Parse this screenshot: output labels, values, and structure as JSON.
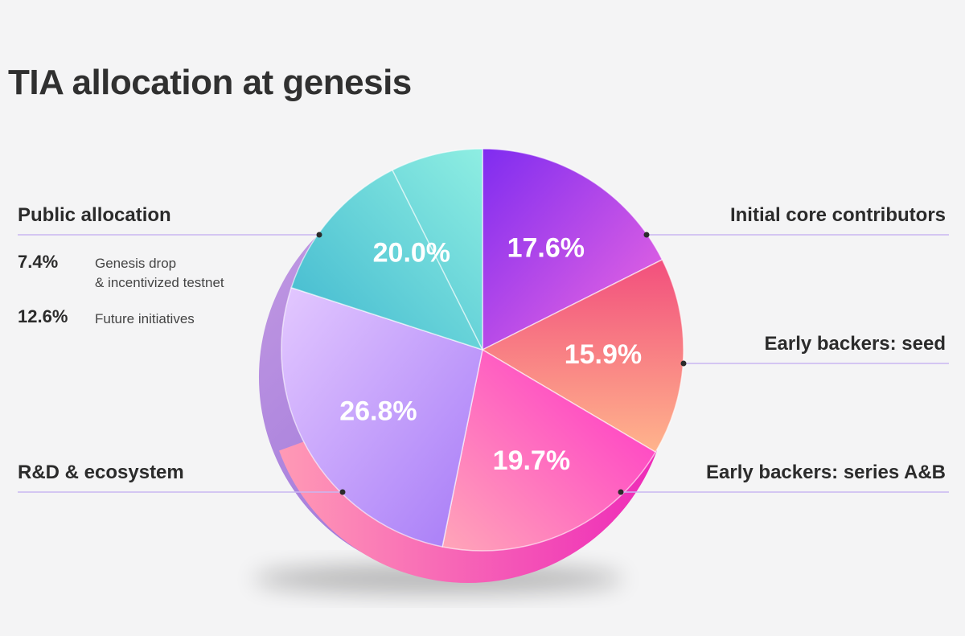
{
  "title": "TIA allocation at genesis",
  "chart_data": {
    "type": "pie",
    "title": "TIA allocation at genesis",
    "slices": [
      {
        "label": "Initial core contributors",
        "value": 17.6,
        "value_label": "17.6%",
        "colors": [
          "#7f2cf0",
          "#f06ae0"
        ]
      },
      {
        "label": "Early backers: seed",
        "value": 15.9,
        "value_label": "15.9%",
        "colors": [
          "#f24f7d",
          "#ffb48c"
        ]
      },
      {
        "label": "Early backers: series A&B",
        "value": 19.7,
        "value_label": "19.7%",
        "colors": [
          "#ff2ec8",
          "#ffa6b8"
        ]
      },
      {
        "label": "R&D & ecosystem",
        "value": 26.8,
        "value_label": "26.8%",
        "colors": [
          "#a67af7",
          "#e3c8ff"
        ]
      },
      {
        "label": "Public allocation",
        "value": 20.0,
        "value_label": "20.0%",
        "colors": [
          "#3fb7cf",
          "#8eeee2"
        ]
      }
    ],
    "public_breakdown": [
      {
        "value": 7.4,
        "value_label": "7.4%",
        "text": [
          "Genesis drop",
          "& incentivized testnet"
        ]
      },
      {
        "value": 12.6,
        "value_label": "12.6%",
        "text": [
          "Future initiatives"
        ]
      }
    ]
  },
  "colors": {
    "background": "#f4f4f5",
    "leader_line": "#c9b6f2",
    "text": "#2b2b2b"
  }
}
